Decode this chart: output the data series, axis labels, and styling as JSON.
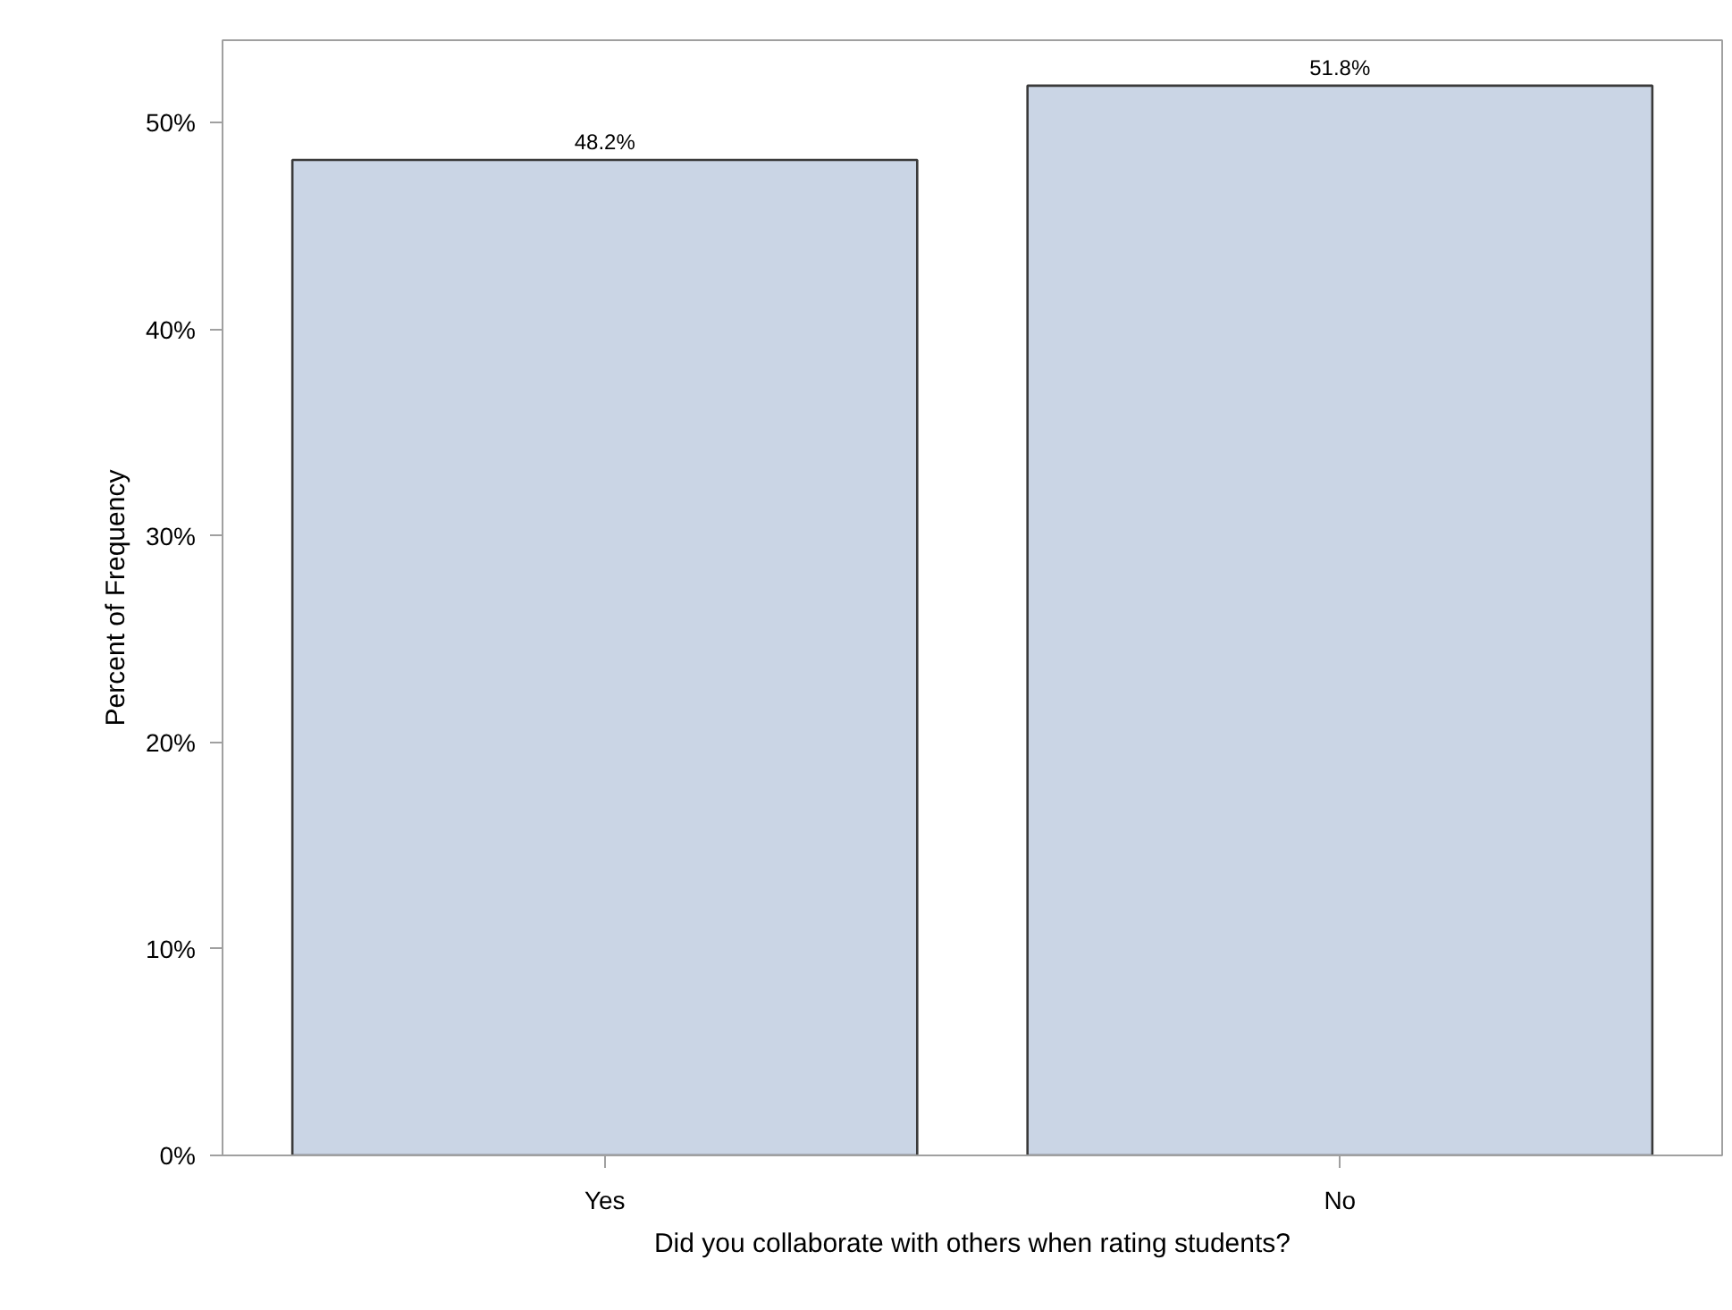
{
  "chart_data": {
    "type": "bar",
    "xlabel": "Did you collaborate with others when rating students?",
    "ylabel": "Percent of Frequency",
    "categories": [
      "Yes",
      "No"
    ],
    "values": [
      48.2,
      51.8
    ],
    "color": "#cad5e5",
    "value_labels": [
      "48.2%",
      "51.8%"
    ],
    "ylim": [
      0,
      54
    ],
    "yticks": [
      {
        "value": 0,
        "label": "0%"
      },
      {
        "value": 10,
        "label": "10%"
      },
      {
        "value": 20,
        "label": "20%"
      },
      {
        "value": 30,
        "label": "30%"
      },
      {
        "value": 40,
        "label": "40%"
      },
      {
        "value": 50,
        "label": "50%"
      }
    ]
  }
}
